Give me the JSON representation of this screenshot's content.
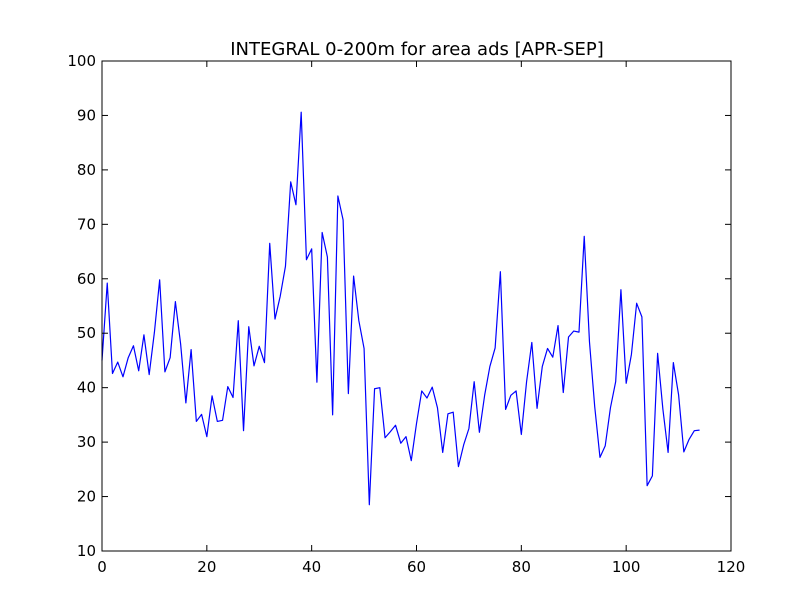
{
  "chart_data": {
    "type": "line",
    "title": "INTEGRAL 0-200m for area ads [APR-SEP]",
    "xlabel": "",
    "ylabel": "",
    "xlim": [
      0,
      120
    ],
    "ylim": [
      10,
      100
    ],
    "x_ticks": [
      0,
      20,
      40,
      60,
      80,
      100,
      120
    ],
    "y_ticks": [
      10,
      20,
      30,
      40,
      50,
      60,
      70,
      80,
      90,
      100
    ],
    "grid": false,
    "legend": "none",
    "series": [
      {
        "color": "#0000ff",
        "x": [
          0,
          1,
          2,
          3,
          4,
          5,
          6,
          7,
          8,
          9,
          10,
          11,
          12,
          13,
          14,
          15,
          16,
          17,
          18,
          19,
          20,
          21,
          22,
          23,
          24,
          25,
          26,
          27,
          28,
          29,
          30,
          31,
          32,
          33,
          34,
          35,
          36,
          37,
          38,
          39,
          40,
          41,
          42,
          43,
          44,
          45,
          46,
          47,
          48,
          49,
          50,
          51,
          52,
          53,
          54,
          55,
          56,
          57,
          58,
          59,
          60,
          61,
          62,
          63,
          64,
          65,
          66,
          67,
          68,
          69,
          70,
          71,
          72,
          73,
          74,
          75,
          76,
          77,
          78,
          79,
          80,
          81,
          82,
          83,
          84,
          85,
          86,
          87,
          88,
          89,
          90,
          91,
          92,
          93,
          94,
          95,
          96,
          97,
          98,
          99,
          100,
          101,
          102,
          103,
          104,
          105,
          106,
          107,
          108,
          109,
          110,
          111,
          112,
          113,
          114
        ],
        "values": [
          45,
          59.2,
          42.6,
          44.7,
          42,
          45.5,
          47.7,
          43.1,
          49.7,
          42.4,
          50.2,
          59.8,
          42.9,
          45.5,
          55.8,
          48,
          37.2,
          47,
          33.8,
          35.1,
          31,
          38.5,
          33.8,
          34,
          40.2,
          38.2,
          52.3,
          32.1,
          51.2,
          44,
          47.6,
          44.6,
          66.5,
          52.6,
          56.8,
          62.3,
          77.8,
          73.6,
          90.6,
          63.5,
          65.5,
          41,
          68.5,
          64,
          35,
          75.2,
          70.8,
          38.9,
          60.5,
          52.3,
          47.2,
          18.5,
          39.8,
          40,
          30.8,
          31.9,
          33.1,
          29.8,
          31,
          26.6,
          33.4,
          39.4,
          38.1,
          40.1,
          36.3,
          28.1,
          35.2,
          35.5,
          25.5,
          29.5,
          32.5,
          41.1,
          31.8,
          38.6,
          43.9,
          47.3,
          61.3,
          36,
          38.6,
          39.4,
          31.4,
          41.1,
          48.3,
          36.2,
          43.9,
          47.2,
          45.6,
          51.4,
          39.1,
          49.3,
          50.4,
          50.2,
          67.8,
          48.4,
          36.5,
          27.2,
          29.3,
          36.3,
          41.1,
          58,
          40.8,
          46.1,
          55.5,
          53,
          22,
          23.8,
          46.3,
          36.1,
          28.1,
          44.6,
          38.7,
          28.2,
          30.5,
          32.1,
          32.2
        ]
      }
    ]
  }
}
